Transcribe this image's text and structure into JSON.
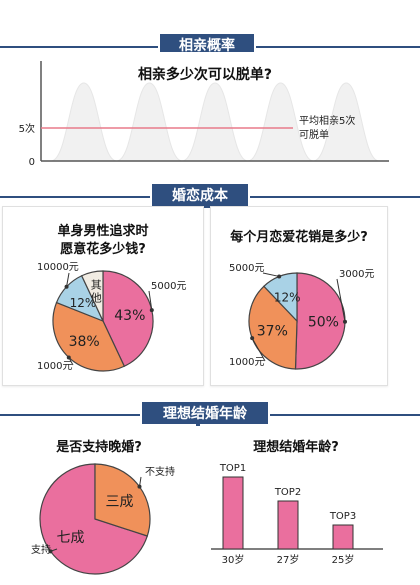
{
  "sections": {
    "s1": {
      "label": "相亲概率"
    },
    "s2": {
      "label": "婚恋成本"
    },
    "s3": {
      "label": "理想结婚年龄"
    }
  },
  "colors": {
    "navy": "#2f4f7f",
    "pink": "#ea6f9e",
    "orange": "#f0915a",
    "blue": "#a9d2e6",
    "cream": "#f1ece3",
    "red": "#e87a8a"
  },
  "chart_data": [
    {
      "type": "area",
      "title": "相亲多少次可以脱单?",
      "yticks": [
        "5次",
        "0"
      ],
      "ref_value": 5,
      "ref_label_lines": [
        "平均相亲5次",
        "可脱单"
      ],
      "peaks": 5
    },
    {
      "type": "pie",
      "title_lines": [
        "单身男性追求时",
        "愿意花多少钱?"
      ],
      "slices": [
        {
          "label": "5000元",
          "value": 43,
          "text": "43%",
          "color": "#ea6f9e"
        },
        {
          "label": "1000元",
          "value": 38,
          "text": "38%",
          "color": "#f0915a"
        },
        {
          "label": "10000元",
          "value": 12,
          "text": "12%",
          "color": "#a9d2e6"
        },
        {
          "label": "其他",
          "value": 7,
          "text": "其他",
          "color": "#f1ece3"
        }
      ]
    },
    {
      "type": "pie",
      "title": "每个月恋爱花销是多少?",
      "slices": [
        {
          "label": "3000元",
          "value": 50,
          "text": "50%",
          "color": "#ea6f9e"
        },
        {
          "label": "1000元",
          "value": 37,
          "text": "37%",
          "color": "#f0915a"
        },
        {
          "label": "5000元",
          "value": 12,
          "text": "12%",
          "color": "#a9d2e6"
        }
      ]
    },
    {
      "type": "pie",
      "title": "是否支持晚婚?",
      "slices": [
        {
          "label": "支持",
          "value": 70,
          "text": "七成",
          "color": "#ea6f9e"
        },
        {
          "label": "不支持",
          "value": 30,
          "text": "三成",
          "color": "#f0915a"
        }
      ]
    },
    {
      "type": "bar",
      "title": "理想结婚年龄?",
      "categories": [
        "30岁",
        "27岁",
        "25岁"
      ],
      "ranks": [
        "TOP1",
        "TOP2",
        "TOP3"
      ],
      "values": [
        3,
        2,
        1
      ]
    }
  ]
}
